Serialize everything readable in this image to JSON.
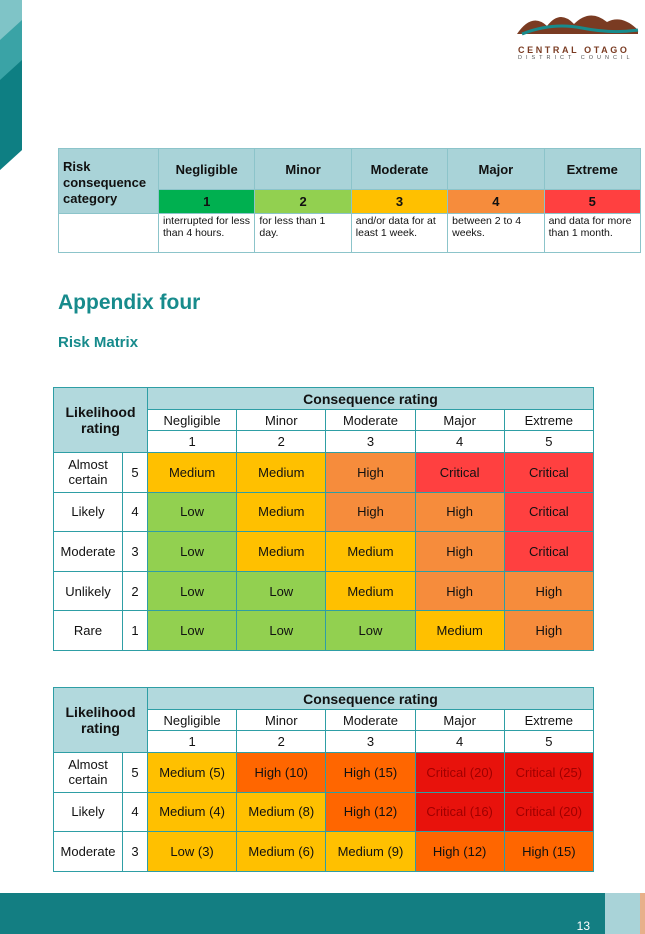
{
  "logo": {
    "name": "CENTRAL OTAGO",
    "sub": "DISTRICT COUNCIL"
  },
  "table_1": {
    "corner": "Risk consequence category",
    "columns": [
      "Negligible",
      "Minor",
      "Moderate",
      "Major",
      "Extreme"
    ],
    "numbers": [
      "1",
      "2",
      "3",
      "4",
      "5"
    ],
    "number_colors": [
      "#00b050",
      "#92d050",
      "#ffc000",
      "#f68c3c",
      "#ff4040"
    ],
    "descriptions": [
      "interrupted for less than 4 hours.",
      "for less than 1 day.",
      "and/or data for at least 1 week.",
      "between 2 to 4 weeks.",
      "and data for more than 1 month."
    ]
  },
  "heading": "Appendix four",
  "subheading": "Risk Matrix",
  "matrix_1": {
    "corner": "Likelihood rating",
    "group": "Consequence rating",
    "columns": [
      "Negligible",
      "Minor",
      "Moderate",
      "Major",
      "Extreme"
    ],
    "numbers": [
      "1",
      "2",
      "3",
      "4",
      "5"
    ],
    "rows": [
      {
        "label": "Almost certain",
        "number": "5",
        "cells": [
          {
            "text": "Medium",
            "color": "#ffc000"
          },
          {
            "text": "Medium",
            "color": "#ffc000"
          },
          {
            "text": "High",
            "color": "#f68c3c"
          },
          {
            "text": "Critical",
            "color": "#ff4040"
          },
          {
            "text": "Critical",
            "color": "#ff4040"
          }
        ]
      },
      {
        "label": "Likely",
        "number": "4",
        "cells": [
          {
            "text": "Low",
            "color": "#92d050"
          },
          {
            "text": "Medium",
            "color": "#ffc000"
          },
          {
            "text": "High",
            "color": "#f68c3c"
          },
          {
            "text": "High",
            "color": "#f68c3c"
          },
          {
            "text": "Critical",
            "color": "#ff4040"
          }
        ]
      },
      {
        "label": "Moderate",
        "number": "3",
        "cells": [
          {
            "text": "Low",
            "color": "#92d050"
          },
          {
            "text": "Medium",
            "color": "#ffc000"
          },
          {
            "text": "Medium",
            "color": "#ffc000"
          },
          {
            "text": "High",
            "color": "#f68c3c"
          },
          {
            "text": "Critical",
            "color": "#ff4040"
          }
        ]
      },
      {
        "label": "Unlikely",
        "number": "2",
        "cells": [
          {
            "text": "Low",
            "color": "#92d050"
          },
          {
            "text": "Low",
            "color": "#92d050"
          },
          {
            "text": "Medium",
            "color": "#ffc000"
          },
          {
            "text": "High",
            "color": "#f68c3c"
          },
          {
            "text": "High",
            "color": "#f68c3c"
          }
        ]
      },
      {
        "label": "Rare",
        "number": "1",
        "cells": [
          {
            "text": "Low",
            "color": "#92d050"
          },
          {
            "text": "Low",
            "color": "#92d050"
          },
          {
            "text": "Low",
            "color": "#92d050"
          },
          {
            "text": "Medium",
            "color": "#ffc000"
          },
          {
            "text": "High",
            "color": "#f68c3c"
          }
        ]
      }
    ]
  },
  "matrix_2": {
    "corner": "Likelihood rating",
    "group": "Consequence rating",
    "columns": [
      "Negligible",
      "Minor",
      "Moderate",
      "Major",
      "Extreme"
    ],
    "numbers": [
      "1",
      "2",
      "3",
      "4",
      "5"
    ],
    "rows": [
      {
        "label": "Almost certain",
        "number": "5",
        "cells": [
          {
            "text": "Medium (5)",
            "color": "#ffc000"
          },
          {
            "text": "High (10)",
            "color": "#ff6600"
          },
          {
            "text": "High (15)",
            "color": "#ff6600"
          },
          {
            "text": "Critical (20)",
            "color": "#e8120c",
            "text_color": "#a00000"
          },
          {
            "text": "Critical (25)",
            "color": "#e8120c",
            "text_color": "#a00000"
          }
        ]
      },
      {
        "label": "Likely",
        "number": "4",
        "cells": [
          {
            "text": "Medium (4)",
            "color": "#ffc000"
          },
          {
            "text": "Medium (8)",
            "color": "#ffc000"
          },
          {
            "text": "High (12)",
            "color": "#ff6600"
          },
          {
            "text": "Critical (16)",
            "color": "#e8120c",
            "text_color": "#a00000"
          },
          {
            "text": "Critical (20)",
            "color": "#e8120c",
            "text_color": "#a00000"
          }
        ]
      },
      {
        "label": "Moderate",
        "number": "3",
        "cells": [
          {
            "text": "Low (3)",
            "color": "#ffc000"
          },
          {
            "text": "Medium (6)",
            "color": "#ffc000"
          },
          {
            "text": "Medium (9)",
            "color": "#ffc000"
          },
          {
            "text": "High (12)",
            "color": "#ff6600"
          },
          {
            "text": "High (15)",
            "color": "#ff6600"
          }
        ]
      }
    ]
  },
  "page_number": "13"
}
